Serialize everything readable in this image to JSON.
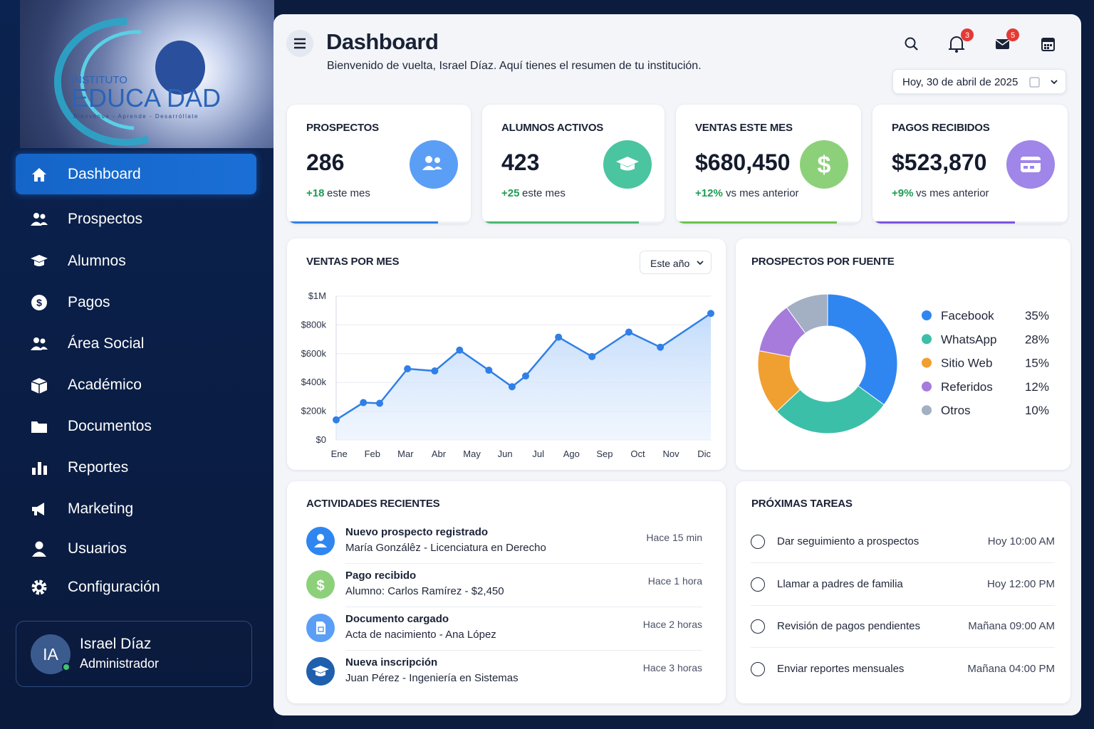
{
  "logo": {
    "top": "INSTITUTO",
    "name": "EDUCA DAD",
    "tagline": "Bienvenue - Aprende - Desarróllate"
  },
  "nav": [
    "Dashboard",
    "Prospectos",
    "Alumnos",
    "Pagos",
    "Área Social",
    "Académico",
    "Documentos",
    "Reportes",
    "Marketing",
    "Usuarios",
    "Configuración"
  ],
  "user": {
    "initials": "IA",
    "name": "Israel Díaz",
    "role": "Administrador"
  },
  "header": {
    "title": "Dashboard",
    "subtitle": "Bienvenido de vuelta, Israel Díaz. Aquí tienes el resumen de tu institución.",
    "notifications": "3",
    "messages": "5",
    "date": "Hoy, 30 de abril de 2025"
  },
  "stats": [
    {
      "label": "PROSPECTOS",
      "value": "286",
      "delta": "+18",
      "note": "este mes",
      "progress": 82,
      "color": "#2f7fe6",
      "icon_color": "#5b9ef5"
    },
    {
      "label": "ALUMNOS ACTIVOS",
      "value": "423",
      "delta": "+25",
      "note": "este mes",
      "progress": 86,
      "color": "#4cb874",
      "icon_color": "#4bc4a0"
    },
    {
      "label": "VENTAS ESTE MES",
      "value": "$680,450",
      "delta": "+12%",
      "note": "vs mes anterior",
      "progress": 87,
      "color": "#6cc24f",
      "icon_color": "#8cd17a"
    },
    {
      "label": "PAGOS RECIBIDOS",
      "value": "$523,870",
      "delta": "+9%",
      "note": "vs mes anterior",
      "progress": 73,
      "color": "#7a55e0",
      "icon_color": "#9f86e8"
    }
  ],
  "chart_data": [
    {
      "type": "line",
      "title": "VENTAS POR MES",
      "filter": "Este año",
      "color": "#2f7fe6",
      "x": [
        0.91,
        1.73,
        2.22,
        3.06,
        3.88,
        4.63,
        5.51,
        6.21,
        6.62,
        7.61,
        8.62,
        9.73,
        10.68,
        12.2
      ],
      "values": [
        140000,
        260000,
        255000,
        495000,
        480000,
        625000,
        485000,
        370000,
        445000,
        715000,
        580000,
        750000,
        645000,
        880000
      ],
      "xlim": [
        0.91,
        12.2
      ],
      "xticks": [
        {
          "value": 1,
          "label": "Ene"
        },
        {
          "value": 2,
          "label": "Feb"
        },
        {
          "value": 3,
          "label": "Mar"
        },
        {
          "value": 4,
          "label": "Abr"
        },
        {
          "value": 5,
          "label": "May"
        },
        {
          "value": 6,
          "label": "Jun"
        },
        {
          "value": 7,
          "label": "Jul"
        },
        {
          "value": 8,
          "label": "Ago"
        },
        {
          "value": 9,
          "label": "Sep"
        },
        {
          "value": 10,
          "label": "Oct"
        },
        {
          "value": 11,
          "label": "Nov"
        },
        {
          "value": 12,
          "label": "Dic"
        }
      ],
      "ylim": [
        0,
        1000000
      ],
      "yticks": [
        {
          "value": 0,
          "label": "$0"
        },
        {
          "value": 200000,
          "label": "$200k"
        },
        {
          "value": 400000,
          "label": "$400k"
        },
        {
          "value": 600000,
          "label": "$600k"
        },
        {
          "value": 800000,
          "label": "$800k"
        },
        {
          "value": 1000000,
          "label": "$1M"
        }
      ],
      "grid": true
    },
    {
      "type": "pie",
      "title": "PROSPECTOS POR FUENTE",
      "donut": true,
      "categories": [
        "Facebook",
        "WhatsApp",
        "Sitio Web",
        "Referidos",
        "Otros"
      ],
      "values": [
        35,
        28,
        15,
        12,
        10
      ],
      "value_labels": [
        "35%",
        "28%",
        "15%",
        "12%",
        "10%"
      ],
      "colors": [
        "#2f86f0",
        "#3cbfa8",
        "#f0a030",
        "#a77bdc",
        "#a3afc2"
      ]
    }
  ],
  "activities": {
    "title": "ACTIVIDADES RECIENTES",
    "items": [
      {
        "title": "Nuevo prospecto registrado",
        "detail": "María Gonzálêz - Licenciatura en Derecho",
        "time": "Hace 15 min"
      },
      {
        "title": "Pago recibido",
        "detail": "Alumno: Carlos Ramírez - $2,450",
        "time": "Hace 1 hora"
      },
      {
        "title": "Documento cargado",
        "detail": "Acta de nacimiento - Ana López",
        "time": "Hace 2 horas"
      },
      {
        "title": "Nueva inscripción",
        "detail": "Juan Pérez - Ingeniería en Sistemas",
        "time": "Hace 3 horas"
      }
    ]
  },
  "tasks": {
    "title": "PRÓXIMAS TAREAS",
    "items": [
      {
        "text": "Dar seguimiento a prospectos",
        "time": "Hoy 10:00 AM"
      },
      {
        "text": "Llamar a padres de familia",
        "time": "Hoy 12:00 PM"
      },
      {
        "text": "Revisión de pagos pendientes",
        "time": "Mañana 09:00 AM"
      },
      {
        "text": "Enviar reportes mensuales",
        "time": "Mañana 04:00 PM"
      }
    ]
  }
}
